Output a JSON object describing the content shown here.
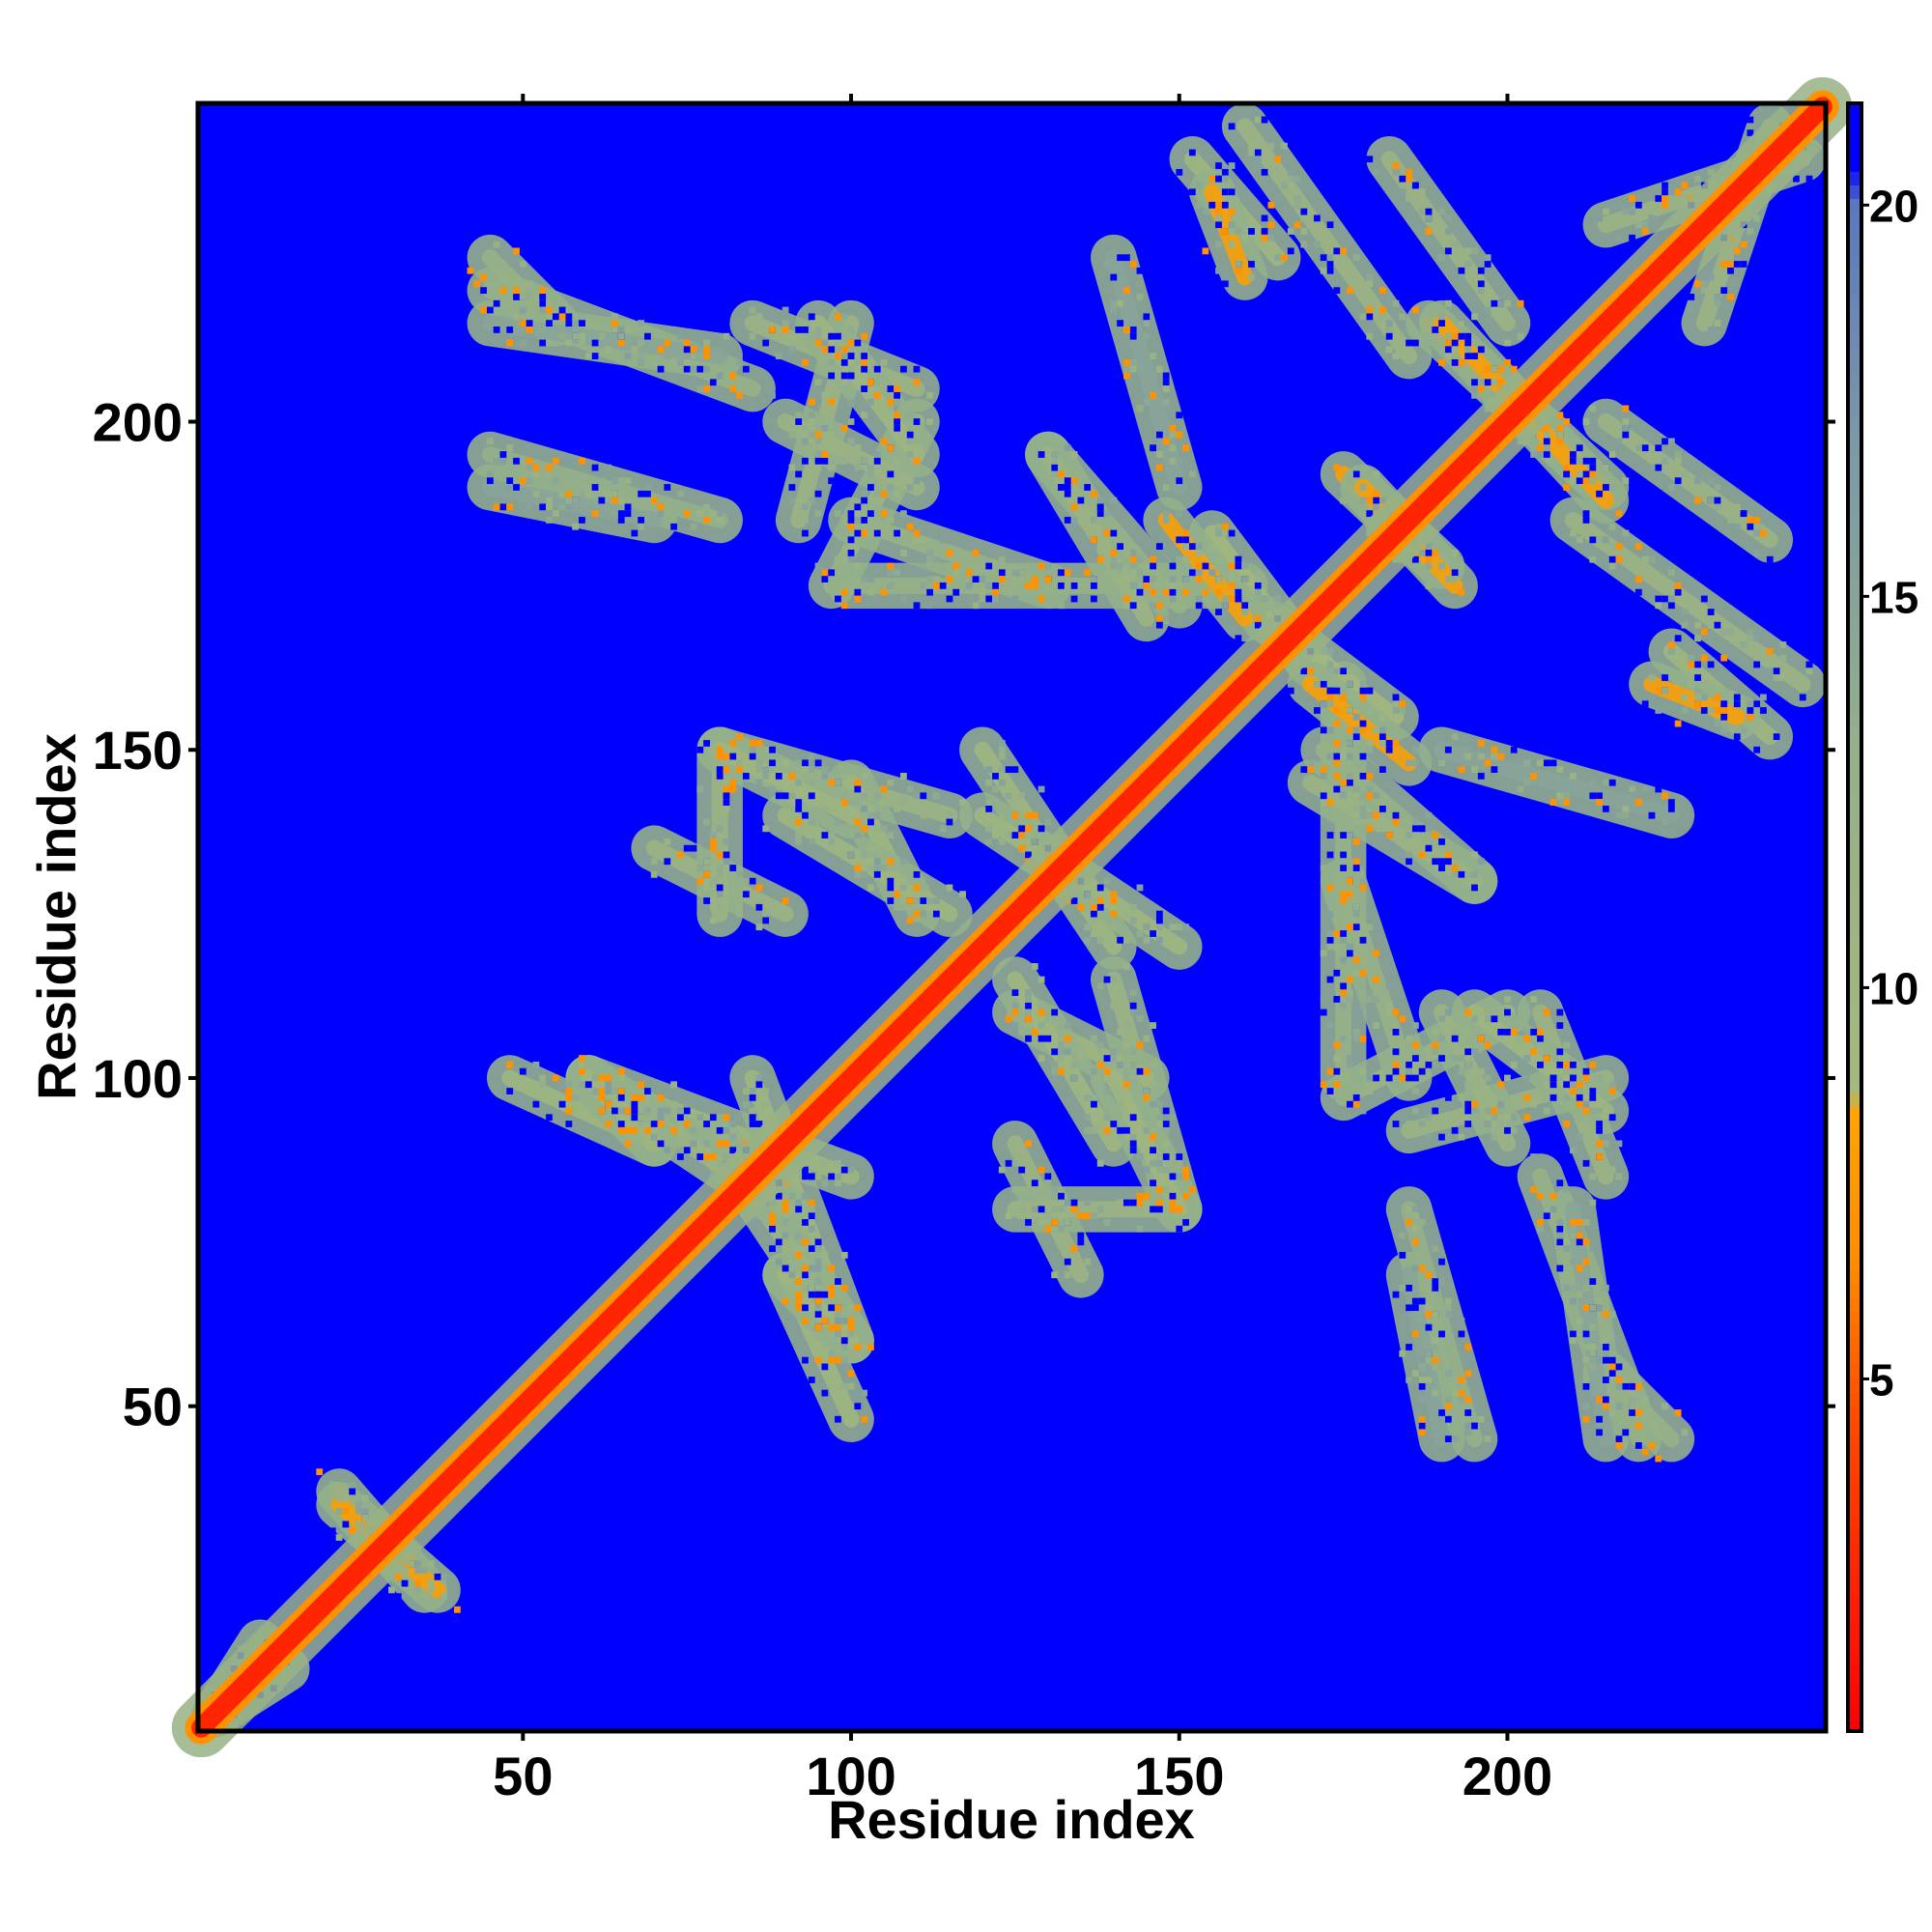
{
  "chart_data": {
    "type": "heatmap",
    "title": "",
    "xlabel": "Residue index",
    "ylabel": "Residue index",
    "xlim": [
      1,
      248
    ],
    "ylim": [
      1,
      248
    ],
    "x_ticks": [
      50,
      100,
      150,
      200
    ],
    "y_ticks": [
      50,
      100,
      150,
      200
    ],
    "colorbar": {
      "range": [
        0.5,
        21.3
      ],
      "ticks": [
        5,
        10,
        15,
        20
      ],
      "stops": [
        {
          "value": 0.5,
          "color": "#ff0000"
        },
        {
          "value": 4.5,
          "color": "#ff4a00"
        },
        {
          "value": 6.5,
          "color": "#ff8c00"
        },
        {
          "value": 8.5,
          "color": "#ffa500"
        },
        {
          "value": 8.6,
          "color": "#a6b97a"
        },
        {
          "value": 13.0,
          "color": "#94b08a"
        },
        {
          "value": 17.0,
          "color": "#7c98a8"
        },
        {
          "value": 20.0,
          "color": "#5a78c0"
        },
        {
          "value": 20.5,
          "color": "#0000ff"
        },
        {
          "value": 21.3,
          "color": "#0000ff"
        }
      ]
    },
    "background_value": 21,
    "diagonal": {
      "from": 1,
      "to": 248,
      "value": 2.5
    },
    "contact_segments": [
      {
        "x1": 22,
        "y1": 37,
        "x2": 35,
        "y2": 22,
        "value": 8
      },
      {
        "x1": 3,
        "y1": 3,
        "x2": 14,
        "y2": 10,
        "value": 12
      },
      {
        "x1": 97,
        "y1": 175,
        "x2": 110,
        "y2": 200,
        "value": 11
      },
      {
        "x1": 92,
        "y1": 185,
        "x2": 100,
        "y2": 215,
        "value": 11
      },
      {
        "x1": 100,
        "y1": 175,
        "x2": 160,
        "y2": 175,
        "value": 12
      },
      {
        "x1": 130,
        "y1": 195,
        "x2": 150,
        "y2": 172,
        "value": 12
      },
      {
        "x1": 155,
        "y1": 183,
        "x2": 170,
        "y2": 163,
        "value": 9
      },
      {
        "x1": 175,
        "y1": 192,
        "x2": 190,
        "y2": 178,
        "value": 8
      },
      {
        "x1": 188,
        "y1": 215,
        "x2": 215,
        "y2": 190,
        "value": 8
      },
      {
        "x1": 152,
        "y1": 240,
        "x2": 165,
        "y2": 225,
        "value": 10
      },
      {
        "x1": 182,
        "y1": 240,
        "x2": 200,
        "y2": 215,
        "value": 11
      },
      {
        "x1": 215,
        "y1": 230,
        "x2": 245,
        "y2": 240,
        "value": 11
      },
      {
        "x1": 210,
        "y1": 185,
        "x2": 245,
        "y2": 160,
        "value": 11
      },
      {
        "x1": 222,
        "y1": 160,
        "x2": 235,
        "y2": 155,
        "value": 8
      },
      {
        "x1": 170,
        "y1": 160,
        "x2": 185,
        "y2": 148,
        "value": 8
      },
      {
        "x1": 170,
        "y1": 145,
        "x2": 195,
        "y2": 130,
        "value": 11
      },
      {
        "x1": 175,
        "y1": 130,
        "x2": 185,
        "y2": 100,
        "value": 12
      },
      {
        "x1": 190,
        "y1": 110,
        "x2": 200,
        "y2": 90,
        "value": 11
      },
      {
        "x1": 205,
        "y1": 110,
        "x2": 215,
        "y2": 85,
        "value": 11
      },
      {
        "x1": 205,
        "y1": 85,
        "x2": 220,
        "y2": 45,
        "value": 12
      },
      {
        "x1": 185,
        "y1": 80,
        "x2": 195,
        "y2": 45,
        "value": 13
      },
      {
        "x1": 48,
        "y1": 100,
        "x2": 70,
        "y2": 90,
        "value": 10
      },
      {
        "x1": 60,
        "y1": 100,
        "x2": 100,
        "y2": 85,
        "value": 10
      },
      {
        "x1": 80,
        "y1": 90,
        "x2": 100,
        "y2": 60,
        "value": 11
      },
      {
        "x1": 90,
        "y1": 70,
        "x2": 100,
        "y2": 60,
        "value": 10
      },
      {
        "x1": 70,
        "y1": 135,
        "x2": 90,
        "y2": 125,
        "value": 11
      },
      {
        "x1": 80,
        "y1": 150,
        "x2": 115,
        "y2": 140,
        "value": 11
      },
      {
        "x1": 100,
        "y1": 145,
        "x2": 110,
        "y2": 125,
        "value": 10
      },
      {
        "x1": 120,
        "y1": 150,
        "x2": 140,
        "y2": 120,
        "value": 10
      },
      {
        "x1": 125,
        "y1": 115,
        "x2": 140,
        "y2": 90,
        "value": 10
      },
      {
        "x1": 125,
        "y1": 80,
        "x2": 150,
        "y2": 80,
        "value": 11
      },
      {
        "x1": 140,
        "y1": 100,
        "x2": 150,
        "y2": 80,
        "value": 10
      },
      {
        "x1": 45,
        "y1": 225,
        "x2": 55,
        "y2": 215,
        "value": 12
      },
      {
        "x1": 45,
        "y1": 215,
        "x2": 80,
        "y2": 210,
        "value": 15
      },
      {
        "x1": 95,
        "y1": 215,
        "x2": 110,
        "y2": 195,
        "value": 10
      },
      {
        "x1": 45,
        "y1": 190,
        "x2": 70,
        "y2": 185,
        "value": 15
      },
      {
        "x1": 140,
        "y1": 225,
        "x2": 150,
        "y2": 190,
        "value": 15
      }
    ]
  }
}
